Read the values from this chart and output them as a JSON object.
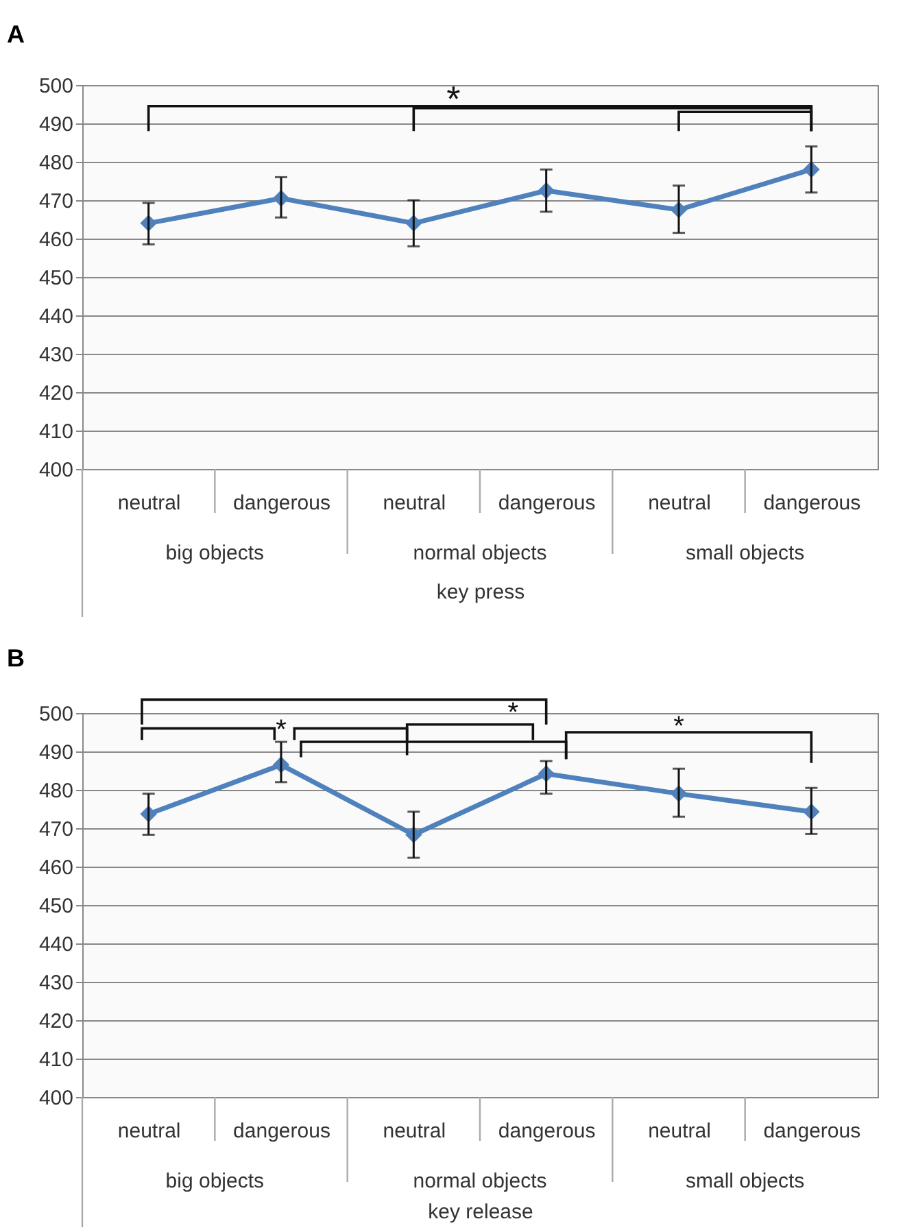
{
  "chart_data": [
    {
      "type": "line",
      "title": "A",
      "xlabel": "key press",
      "categories": [
        "neutral",
        "dangerous",
        "neutral",
        "dangerous",
        "neutral",
        "dangerous"
      ],
      "series": [
        {
          "color": "#4f81bd",
          "values": [
            464,
            470.5,
            464,
            472.5,
            467.5,
            478
          ],
          "errors": [
            [
              458.5,
              469.3
            ],
            [
              465.5,
              476
            ],
            [
              458,
              470
            ],
            [
              467,
              478
            ],
            [
              461.5,
              473.8
            ],
            [
              472,
              484
            ]
          ]
        }
      ],
      "ylim": [
        400,
        500
      ],
      "yticks": [
        400,
        410,
        420,
        430,
        440,
        450,
        460,
        470,
        480,
        490,
        500
      ],
      "grid": "y",
      "marker": "diamond",
      "annotations": [
        "big objects",
        "normal objects",
        "small  objects",
        "*"
      ]
    },
    {
      "type": "line",
      "title": "B",
      "xlabel": "key release",
      "categories": [
        "neutral",
        "dangerous",
        "neutral",
        "dangerous",
        "neutral",
        "dangerous"
      ],
      "series": [
        {
          "color": "#4f81bd",
          "values": [
            473.7,
            486.5,
            468.3,
            484.2,
            479,
            474.3
          ],
          "errors": [
            [
              468.3,
              479
            ],
            [
              482,
              492.5
            ],
            [
              462.3,
              474.3
            ],
            [
              479,
              487.5
            ],
            [
              473,
              485.5
            ],
            [
              468.5,
              480.5
            ]
          ]
        }
      ],
      "ylim": [
        400,
        500
      ],
      "yticks": [
        400,
        410,
        420,
        430,
        440,
        450,
        460,
        470,
        480,
        490,
        500
      ],
      "grid": "y",
      "marker": "diamond",
      "annotations": [
        "big  objects",
        "normal objects",
        "small  objects",
        "*",
        "*",
        "*"
      ]
    }
  ]
}
